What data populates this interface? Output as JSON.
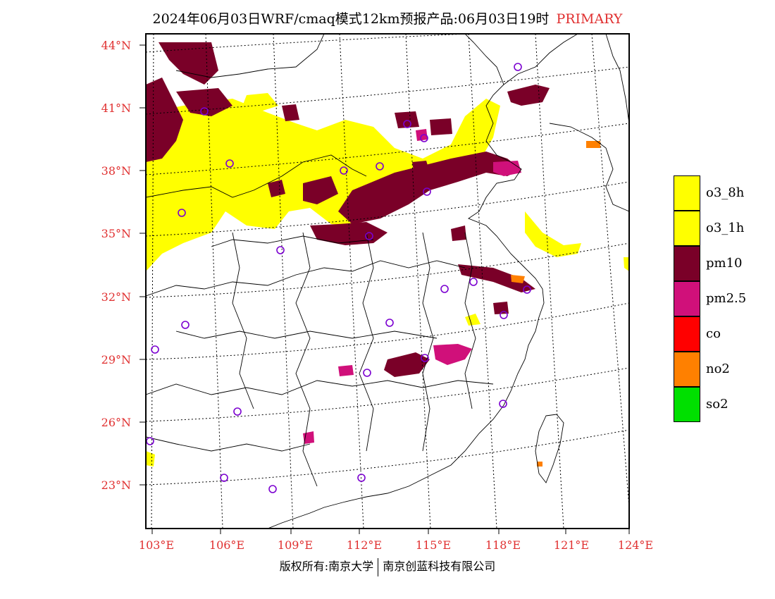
{
  "header": {
    "title": "2024年06月03日WRF/cmaq模式12km预报产品:06月03日19时",
    "tag": "PRIMARY"
  },
  "map": {
    "lat_labels": [
      "44°N",
      "41°N",
      "38°N",
      "35°N",
      "32°N",
      "29°N",
      "26°N",
      "23°N"
    ],
    "lon_labels": [
      "103°E",
      "106°E",
      "109°E",
      "112°E",
      "115°E",
      "118°E",
      "121°E",
      "124°E"
    ]
  },
  "legend": {
    "items": [
      {
        "label": "o3_8h",
        "color": "#ffff00"
      },
      {
        "label": "o3_1h",
        "color": "#ffff00"
      },
      {
        "label": "pm10",
        "color": "#7a0028"
      },
      {
        "label": "pm2.5",
        "color": "#d0107a"
      },
      {
        "label": "co",
        "color": "#ff0000"
      },
      {
        "label": "no2",
        "color": "#ff8000"
      },
      {
        "label": "so2",
        "color": "#00e000"
      }
    ]
  },
  "footer": {
    "left": "版权所有:南京大学",
    "right": "南京创蓝科技有限公司"
  }
}
